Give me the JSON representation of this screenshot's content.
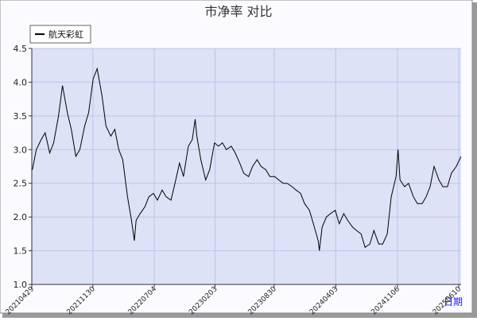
{
  "chart_data": {
    "type": "line",
    "title": "市净率  对比",
    "x_label": "日期",
    "series": [
      {
        "name": "航天彩虹",
        "color": "#000000",
        "values": [
          2.7,
          3.0,
          3.15,
          3.25,
          2.95,
          3.1,
          3.5,
          3.95,
          3.55,
          3.3,
          2.9,
          3.0,
          3.35,
          3.55,
          4.05,
          4.2,
          3.8,
          3.35,
          3.2,
          3.3,
          3.0,
          2.85,
          2.3,
          1.95,
          1.65,
          1.95,
          2.05,
          2.15,
          2.3,
          2.35,
          2.25,
          2.4,
          2.3,
          2.25,
          2.5,
          2.8,
          2.6,
          3.05,
          3.15,
          3.45,
          3.2,
          2.85,
          2.55,
          2.7,
          3.1,
          3.05,
          3.1,
          3.0,
          3.05,
          2.95,
          2.8,
          2.65,
          2.6,
          2.75,
          2.85,
          2.75,
          2.7,
          2.6,
          2.6,
          2.55,
          2.5,
          2.5,
          2.45,
          2.4,
          2.35,
          2.2,
          2.1,
          1.9,
          1.65,
          1.5,
          1.85,
          2.0,
          2.05,
          2.1,
          1.9,
          2.05,
          1.95,
          1.85,
          1.8,
          1.75,
          1.55,
          1.6,
          1.8,
          1.6,
          1.6,
          1.75,
          2.3,
          2.6,
          3.0,
          2.55,
          2.45,
          2.5,
          2.3,
          2.2,
          2.2,
          2.3,
          2.45,
          2.75,
          2.55,
          2.45,
          2.45,
          2.65,
          2.75,
          2.9
        ]
      }
    ],
    "x": [
      "20210501",
      "20210515",
      "20210601",
      "20210615",
      "20210701",
      "20210715",
      "20210801",
      "20210815",
      "20210901",
      "20210915",
      "20211001",
      "20211015",
      "20211101",
      "20211115",
      "20211201",
      "20211215",
      "20220101",
      "20220115",
      "20220201",
      "20220215",
      "20220301",
      "20220315",
      "20220401",
      "20220415",
      "20220425",
      "20220501",
      "20220515",
      "20220601",
      "20220615",
      "20220701",
      "20220715",
      "20220801",
      "20220815",
      "20220901",
      "20220915",
      "20221001",
      "20221015",
      "20221101",
      "20221115",
      "20221125",
      "20221201",
      "20221215",
      "20230101",
      "20230115",
      "20230201",
      "20230215",
      "20230301",
      "20230315",
      "20230401",
      "20230415",
      "20230501",
      "20230515",
      "20230601",
      "20230615",
      "20230701",
      "20230715",
      "20230801",
      "20230815",
      "20230901",
      "20230915",
      "20231001",
      "20231015",
      "20231101",
      "20231115",
      "20231201",
      "20231215",
      "20240101",
      "20240115",
      "20240201",
      "20240205",
      "20240215",
      "20240301",
      "20240315",
      "20240401",
      "20240415",
      "20240501",
      "20240515",
      "20240601",
      "20240615",
      "20240701",
      "20240715",
      "20240801",
      "20240815",
      "20240901",
      "20240915",
      "20241001",
      "20241015",
      "20241101",
      "20241108",
      "20241115",
      "20241201",
      "20241215",
      "20250101",
      "20250115",
      "20250201",
      "20250215",
      "20250301",
      "20250315",
      "20250401",
      "20250415",
      "20250501",
      "20250515",
      "20250601",
      "20250618"
    ],
    "xlim": [
      "20210429",
      "20250618"
    ],
    "xticks": [
      "20210429",
      "20211130",
      "20220704",
      "20230203",
      "20230830",
      "20240403",
      "20241106",
      "20250610"
    ],
    "ylim": [
      1.0,
      4.5
    ],
    "yticks": [
      {
        "value": 1,
        "label": "1.0"
      },
      1.5,
      {
        "value": 2,
        "label": "2.0"
      },
      2.5,
      {
        "value": 3,
        "label": "3.0"
      },
      3.5,
      {
        "value": 4,
        "label": "4.0"
      },
      4.5
    ],
    "grid": true
  }
}
